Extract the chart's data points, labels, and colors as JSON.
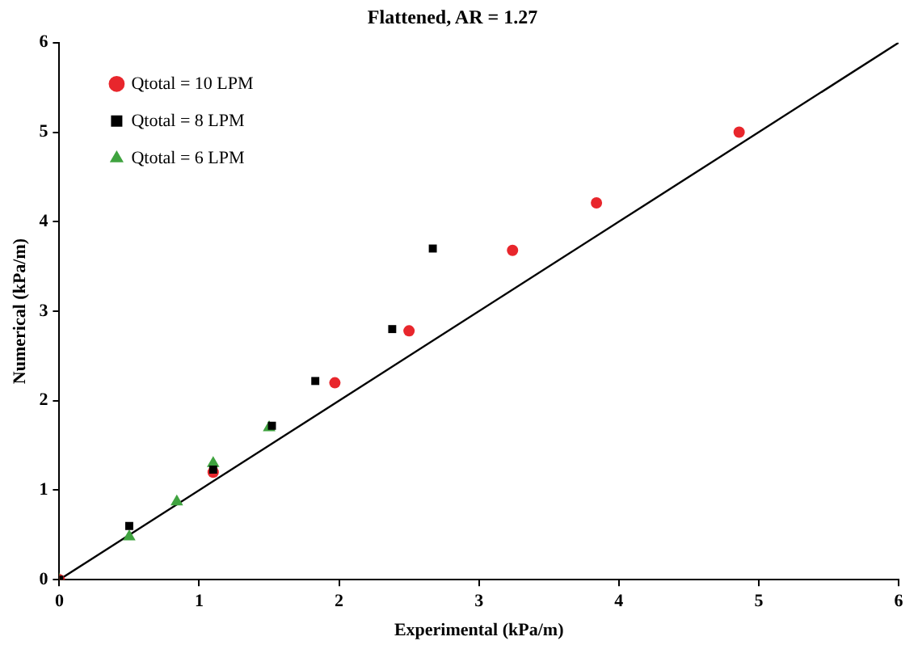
{
  "chart_data": {
    "type": "scatter",
    "title": "Flattened, AR = 1.27",
    "xlabel": "Experimental (kPa/m)",
    "ylabel": "Numerical (kPa/m)",
    "xlim": [
      0,
      6
    ],
    "xticks": [
      0,
      1,
      2,
      3,
      4,
      5,
      6
    ],
    "ylim": [
      0,
      6
    ],
    "yticks": [
      0,
      1,
      2,
      3,
      4,
      5,
      6
    ],
    "grid": false,
    "legend": "top left",
    "series": [
      {
        "name": "Qtotal = 10 LPM",
        "color": "#e8262c",
        "marker": "circle",
        "x": [
          0,
          1.1,
          1.97,
          2.5,
          3.24,
          3.84,
          4.86
        ],
        "values": [
          0,
          1.2,
          2.2,
          2.78,
          3.68,
          4.21,
          5.0
        ]
      },
      {
        "name": "Qtotal = 8 LPM",
        "color": "#000000",
        "marker": "square",
        "x": [
          0,
          0.5,
          1.1,
          1.52,
          1.83,
          2.38,
          2.67
        ],
        "values": [
          0,
          0.6,
          1.23,
          1.72,
          2.22,
          2.8,
          3.7
        ]
      },
      {
        "name": "Qtotal = 6 LPM",
        "color": "#3fa33f",
        "marker": "triangle",
        "x": [
          0,
          0.5,
          0.84,
          1.1,
          1.5
        ],
        "values": [
          0,
          0.48,
          0.87,
          1.3,
          1.7
        ]
      },
      {
        "type": "line",
        "color": "#000000",
        "marker": "none",
        "line_style": "solid",
        "x": [
          0,
          6
        ],
        "values": [
          0,
          6
        ]
      }
    ]
  }
}
